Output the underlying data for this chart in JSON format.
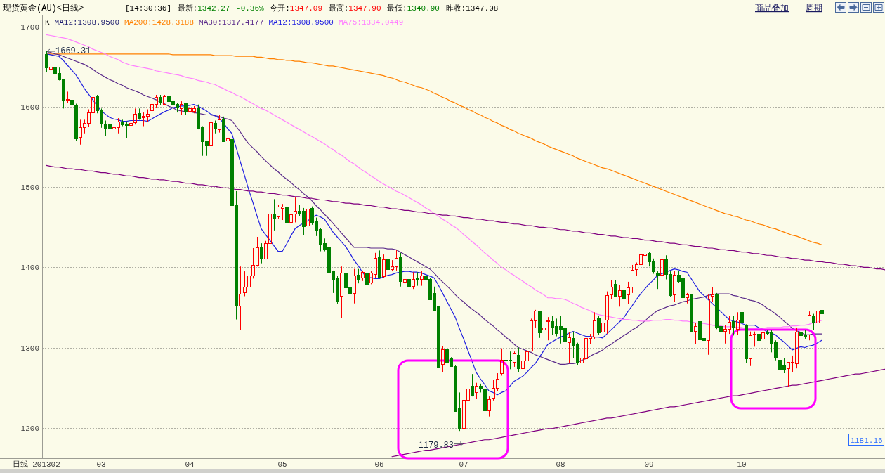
{
  "chart_data": {
    "type": "candlestick",
    "title": "现货黄金(AU)<日线>",
    "subtitle": "[14:30:36] 最新:1342.27 -0.36% 今开:1347.09 最高:1347.90 最低:1340.90 昨收:1347.08",
    "legend_title": "K",
    "categories": [
      "201302",
      null,
      null,
      null,
      null,
      null,
      null,
      null,
      null,
      null,
      null,
      null,
      null,
      "03",
      null,
      null,
      null,
      null,
      null,
      null,
      null,
      null,
      null,
      null,
      null,
      null,
      null,
      null,
      null,
      null,
      null,
      null,
      null,
      null,
      "04",
      null,
      null,
      null,
      null,
      null,
      null,
      null,
      null,
      null,
      null,
      null,
      null,
      null,
      null,
      null,
      null,
      null,
      null,
      null,
      null,
      null,
      "05",
      null,
      null,
      null,
      null,
      null,
      null,
      null,
      null,
      null,
      null,
      null,
      null,
      null,
      null,
      null,
      null,
      null,
      null,
      null,
      null,
      null,
      null,
      "06",
      null,
      null,
      null,
      null,
      null,
      null,
      null,
      null,
      null,
      null,
      null,
      null,
      null,
      null,
      null,
      null,
      null,
      null,
      null,
      "07",
      null,
      null,
      null,
      null,
      null,
      null,
      null,
      null,
      null,
      null,
      null,
      null,
      null,
      null,
      null,
      null,
      null,
      null,
      null,
      null,
      null,
      null,
      "08",
      null,
      null,
      null,
      null,
      null,
      null,
      null,
      null,
      null,
      null,
      null,
      null,
      null,
      null,
      null,
      null,
      null,
      null,
      null,
      null,
      "09",
      null,
      null,
      null,
      null,
      null,
      null,
      null,
      null,
      null,
      null,
      null,
      null,
      null,
      null,
      null,
      null,
      null,
      null,
      null,
      null,
      null,
      "10",
      null,
      null,
      null,
      null,
      null,
      null,
      null,
      null,
      null,
      null,
      null,
      null,
      null,
      null,
      null,
      null,
      null,
      null,
      null,
      null,
      null,
      null,
      null,
      null,
      null,
      null,
      null,
      null,
      null,
      null,
      null,
      null,
      null,
      null
    ],
    "ohlc": [
      [
        1666,
        1669.31,
        1643,
        1649
      ],
      [
        1647,
        1653,
        1638,
        1650
      ],
      [
        1650,
        1652,
        1638,
        1641
      ],
      [
        1642,
        1649,
        1633,
        1634
      ],
      [
        1634,
        1634,
        1598,
        1608
      ],
      [
        1609,
        1619,
        1605,
        1610
      ],
      [
        1609,
        1609,
        1601,
        1603
      ],
      [
        1603,
        1604,
        1558,
        1561
      ],
      [
        1562,
        1584,
        1553,
        1575
      ],
      [
        1575,
        1584,
        1567,
        1580
      ],
      [
        1580,
        1597,
        1575,
        1593
      ],
      [
        1593,
        1619,
        1583,
        1612
      ],
      [
        1613,
        1615,
        1592,
        1596
      ],
      [
        1597,
        1598,
        1574,
        1579
      ],
      [
        1579,
        1583,
        1564,
        1574
      ],
      [
        1579,
        1587,
        1564,
        1573
      ],
      [
        1573,
        1584,
        1570,
        1575
      ],
      [
        1575,
        1586,
        1567,
        1582
      ],
      [
        1582,
        1584,
        1576,
        1578
      ],
      [
        1579,
        1582,
        1561,
        1577
      ],
      [
        1577,
        1586,
        1574,
        1580
      ],
      [
        1581,
        1598,
        1578,
        1591
      ],
      [
        1592,
        1598,
        1584,
        1586
      ],
      [
        1587,
        1593,
        1576,
        1589
      ],
      [
        1589,
        1597,
        1581,
        1591
      ],
      [
        1596,
        1611,
        1590,
        1604
      ],
      [
        1604,
        1615,
        1599,
        1612
      ],
      [
        1612,
        1615,
        1602,
        1605
      ],
      [
        1604,
        1615,
        1603,
        1613
      ],
      [
        1614,
        1615,
        1602,
        1607
      ],
      [
        1608,
        1609,
        1588,
        1603
      ],
      [
        1604,
        1605,
        1593,
        1599
      ],
      [
        1598,
        1607,
        1590,
        1604
      ],
      [
        1605,
        1605,
        1590,
        1595
      ],
      [
        1595,
        1600,
        1593,
        1598
      ],
      [
        1595,
        1601,
        1592,
        1598
      ],
      [
        1598,
        1603,
        1572,
        1574
      ],
      [
        1575,
        1576,
        1539,
        1557
      ],
      [
        1558,
        1558,
        1539,
        1552
      ],
      [
        1552,
        1583,
        1549,
        1581
      ],
      [
        1580,
        1583,
        1567,
        1573
      ],
      [
        1572,
        1590,
        1568,
        1584
      ],
      [
        1584,
        1588,
        1557,
        1557
      ],
      [
        1558,
        1568,
        1552,
        1561
      ],
      [
        1560,
        1568,
        1476,
        1477
      ],
      [
        1477,
        1495,
        1335,
        1352
      ],
      [
        1352,
        1401,
        1322,
        1367
      ],
      [
        1369,
        1395,
        1364,
        1376
      ],
      [
        1376,
        1394,
        1340,
        1390
      ],
      [
        1390,
        1424,
        1386,
        1403
      ],
      [
        1403,
        1438,
        1401,
        1425
      ],
      [
        1426,
        1430,
        1405,
        1411
      ],
      [
        1411,
        1433,
        1410,
        1430
      ],
      [
        1430,
        1468,
        1428,
        1467
      ],
      [
        1467,
        1485,
        1446,
        1461
      ],
      [
        1463,
        1478,
        1460,
        1476
      ],
      [
        1474,
        1479,
        1459,
        1476
      ],
      [
        1476,
        1476,
        1440,
        1456
      ],
      [
        1456,
        1473,
        1448,
        1466
      ],
      [
        1467,
        1487,
        1456,
        1470
      ],
      [
        1470,
        1478,
        1464,
        1468
      ],
      [
        1470,
        1474,
        1440,
        1451
      ],
      [
        1452,
        1476,
        1449,
        1473
      ],
      [
        1474,
        1476,
        1453,
        1456
      ],
      [
        1457,
        1462,
        1439,
        1447
      ],
      [
        1448,
        1449,
        1420,
        1428
      ],
      [
        1430,
        1436,
        1420,
        1423
      ],
      [
        1425,
        1425,
        1389,
        1393
      ],
      [
        1395,
        1396,
        1368,
        1385
      ],
      [
        1387,
        1389,
        1354,
        1358
      ],
      [
        1364,
        1401,
        1337,
        1393
      ],
      [
        1393,
        1401,
        1359,
        1375
      ],
      [
        1376,
        1420,
        1354,
        1368
      ],
      [
        1368,
        1398,
        1355,
        1390
      ],
      [
        1391,
        1398,
        1380,
        1385
      ],
      [
        1387,
        1396,
        1383,
        1394
      ],
      [
        1393,
        1402,
        1373,
        1379
      ],
      [
        1381,
        1395,
        1379,
        1393
      ],
      [
        1392,
        1418,
        1387,
        1412
      ],
      [
        1413,
        1421,
        1386,
        1387
      ],
      [
        1389,
        1416,
        1387,
        1410
      ],
      [
        1411,
        1417,
        1395,
        1398
      ],
      [
        1398,
        1409,
        1395,
        1401
      ],
      [
        1401,
        1422,
        1396,
        1412
      ],
      [
        1413,
        1418,
        1376,
        1383
      ],
      [
        1382,
        1389,
        1377,
        1385
      ],
      [
        1385,
        1388,
        1365,
        1377
      ],
      [
        1377,
        1394,
        1373,
        1385
      ],
      [
        1387,
        1394,
        1377,
        1385
      ],
      [
        1385,
        1395,
        1377,
        1390
      ],
      [
        1390,
        1392,
        1383,
        1385
      ],
      [
        1385,
        1387,
        1360,
        1360
      ],
      [
        1368,
        1376,
        1347,
        1347
      ],
      [
        1351,
        1352,
        1275,
        1275
      ],
      [
        1279,
        1302,
        1269,
        1298
      ],
      [
        1298,
        1301,
        1276,
        1282
      ],
      [
        1287,
        1288,
        1276,
        1277
      ],
      [
        1277,
        1278,
        1220,
        1221
      ],
      [
        1225,
        1244,
        1196,
        1200
      ],
      [
        1200,
        1235,
        1179.83,
        1235
      ],
      [
        1235,
        1261,
        1234,
        1249
      ],
      [
        1252,
        1267,
        1239,
        1241
      ],
      [
        1244,
        1256,
        1236,
        1252
      ],
      [
        1252,
        1255,
        1244,
        1249
      ],
      [
        1249,
        1249,
        1208,
        1222
      ],
      [
        1222,
        1239,
        1214,
        1236
      ],
      [
        1237,
        1260,
        1234,
        1250
      ],
      [
        1250,
        1268,
        1246,
        1261
      ],
      [
        1268,
        1299,
        1265,
        1285
      ],
      [
        1285,
        1295,
        1274,
        1284
      ],
      [
        1285,
        1295,
        1273,
        1284
      ],
      [
        1282,
        1295,
        1276,
        1293
      ],
      [
        1291,
        1300,
        1269,
        1274
      ],
      [
        1274,
        1288,
        1273,
        1284
      ],
      [
        1284,
        1300,
        1282,
        1295
      ],
      [
        1296,
        1336,
        1295,
        1334
      ],
      [
        1334,
        1347,
        1325,
        1346
      ],
      [
        1345,
        1346,
        1312,
        1319
      ],
      [
        1322,
        1336,
        1313,
        1325
      ],
      [
        1333,
        1338,
        1309,
        1334
      ],
      [
        1333,
        1339,
        1316,
        1325
      ],
      [
        1327,
        1336,
        1314,
        1318
      ],
      [
        1327,
        1339,
        1305,
        1322
      ],
      [
        1325,
        1332,
        1305,
        1308
      ],
      [
        1307,
        1319,
        1281,
        1313
      ],
      [
        1312,
        1320,
        1287,
        1303
      ],
      [
        1304,
        1306,
        1278,
        1281
      ],
      [
        1281,
        1291,
        1273,
        1287
      ],
      [
        1286,
        1313,
        1281,
        1312
      ],
      [
        1312,
        1317,
        1304,
        1314
      ],
      [
        1314,
        1344,
        1311,
        1334
      ],
      [
        1336,
        1339,
        1316,
        1319
      ],
      [
        1320,
        1336,
        1315,
        1331
      ],
      [
        1335,
        1370,
        1317,
        1365
      ],
      [
        1366,
        1384,
        1360,
        1376
      ],
      [
        1379,
        1384,
        1363,
        1364
      ],
      [
        1364,
        1378,
        1351,
        1371
      ],
      [
        1371,
        1379,
        1357,
        1362
      ],
      [
        1366,
        1382,
        1354,
        1375
      ],
      [
        1376,
        1403,
        1368,
        1397
      ],
      [
        1398,
        1406,
        1389,
        1404
      ],
      [
        1404,
        1424,
        1395,
        1416
      ],
      [
        1415,
        1434,
        1412,
        1417
      ],
      [
        1418,
        1419,
        1401,
        1407
      ],
      [
        1407,
        1411,
        1392,
        1395
      ],
      [
        1393,
        1395,
        1373,
        1391
      ],
      [
        1391,
        1416,
        1383,
        1410
      ],
      [
        1411,
        1415,
        1385,
        1392
      ],
      [
        1392,
        1395,
        1363,
        1365
      ],
      [
        1366,
        1395,
        1357,
        1391
      ],
      [
        1391,
        1396,
        1381,
        1383
      ],
      [
        1387,
        1390,
        1358,
        1363
      ],
      [
        1363,
        1368,
        1355,
        1366
      ],
      [
        1366,
        1366,
        1319,
        1320
      ],
      [
        1321,
        1331,
        1304,
        1327
      ],
      [
        1333,
        1334,
        1302,
        1310
      ],
      [
        1312,
        1314,
        1307,
        1309
      ],
      [
        1309,
        1366,
        1291,
        1361
      ],
      [
        1364,
        1375,
        1357,
        1366
      ],
      [
        1366,
        1368,
        1323,
        1325
      ],
      [
        1327,
        1328,
        1313,
        1320
      ],
      [
        1321,
        1328,
        1305,
        1323
      ],
      [
        1323,
        1339,
        1317,
        1332
      ],
      [
        1333,
        1339,
        1315,
        1325
      ],
      [
        1323,
        1344,
        1316,
        1335
      ],
      [
        1344,
        1352,
        1324,
        1331
      ],
      [
        1328,
        1329,
        1281,
        1286
      ],
      [
        1286,
        1320,
        1277,
        1315
      ],
      [
        1316,
        1320,
        1301,
        1317
      ],
      [
        1317,
        1320,
        1305,
        1309
      ],
      [
        1311,
        1322,
        1309,
        1319
      ],
      [
        1320,
        1322,
        1316,
        1318
      ],
      [
        1319,
        1322,
        1294,
        1306
      ],
      [
        1307,
        1309,
        1284,
        1287
      ],
      [
        1285,
        1287,
        1261,
        1272
      ],
      [
        1278,
        1287,
        1268,
        1272
      ],
      [
        1274,
        1282,
        1251,
        1282
      ],
      [
        1281,
        1290,
        1269,
        1282
      ],
      [
        1280,
        1325,
        1274,
        1320
      ],
      [
        1319,
        1322,
        1312,
        1315
      ],
      [
        1316,
        1322,
        1311,
        1314
      ],
      [
        1316,
        1345,
        1309,
        1341
      ],
      [
        1339,
        1342,
        1322,
        1331
      ],
      [
        1331,
        1352,
        1330,
        1346
      ],
      [
        1347.09,
        1347.9,
        1340.9,
        1342.27
      ],
      null,
      null,
      null,
      null,
      null,
      null,
      null,
      null,
      null,
      null,
      null,
      null,
      null,
      null,
      null
    ],
    "series": [
      {
        "type": "line",
        "name": "MA12:1308.9500",
        "color": "#1c1c6e",
        "values": [
          null,
          null,
          null,
          null,
          null,
          null,
          null,
          null,
          null,
          null,
          null,
          null,
          null,
          null,
          null,
          null,
          null,
          null,
          null,
          null,
          null,
          null,
          null,
          null,
          null,
          null,
          null,
          null,
          null,
          null,
          null,
          null,
          null,
          null,
          null,
          null,
          null,
          null,
          null,
          null,
          null,
          null,
          null,
          null,
          null,
          null,
          null,
          null,
          null,
          null,
          null,
          null,
          null,
          null,
          null,
          null,
          null,
          null,
          null,
          null,
          null,
          null,
          null,
          null,
          null,
          null,
          null,
          null,
          null,
          null,
          null,
          null,
          null,
          null,
          null,
          null,
          null,
          null,
          null,
          null,
          null,
          null,
          null,
          null,
          null,
          null,
          null,
          null,
          null,
          null,
          null,
          null,
          null,
          null,
          null,
          null,
          null,
          null,
          null,
          null,
          null,
          null,
          null,
          null,
          null,
          null,
          null,
          null,
          null,
          null,
          null,
          null,
          null,
          null,
          null,
          null,
          null,
          null,
          null,
          null,
          null,
          null,
          null,
          null,
          null,
          null,
          null,
          null,
          null,
          null,
          null,
          null,
          null,
          null,
          null,
          null,
          null,
          null,
          null,
          null,
          null,
          null,
          null,
          null,
          null,
          null,
          null,
          null,
          null,
          null,
          null,
          null,
          null,
          null,
          null,
          null,
          null,
          null,
          null,
          null,
          null,
          null,
          null,
          null,
          null,
          null,
          null,
          null,
          null,
          null,
          null,
          null,
          null,
          null,
          null,
          null,
          null,
          null,
          null,
          null,
          null,
          null,
          null,
          null,
          null,
          null,
          null,
          null,
          null,
          null,
          null,
          null,
          null,
          null,
          null,
          null,
          null,
          null,
          null,
          null
        ]
      },
      {
        "type": "line",
        "name": "MA200:1428.3188",
        "color": "#ff8000",
        "values": [
          1666,
          1666,
          1666,
          1666,
          1666,
          1666,
          1666,
          1666,
          1666,
          1666,
          1666,
          1666,
          1666,
          1666,
          1666,
          1666,
          1666,
          1666,
          1666,
          1666,
          1666,
          1666,
          1666,
          1666,
          1666,
          1666,
          1666,
          1666,
          1666,
          1666,
          1665,
          1665,
          1665,
          1665,
          1665,
          1665,
          1665,
          1665,
          1665,
          1665,
          1664,
          1664,
          1664,
          1664,
          1664,
          1663,
          1663,
          1663,
          1663,
          1663,
          1662,
          1662,
          1661,
          1660,
          1660,
          1659,
          1659,
          1658,
          1658,
          1657,
          1657,
          1656,
          1655,
          1655,
          1654,
          1653,
          1652,
          1651,
          1651,
          1650,
          1649,
          1648,
          1647,
          1646,
          1645,
          1644,
          1643,
          1642,
          1641,
          1640,
          1639,
          1637,
          1636,
          1634,
          1632,
          1631,
          1629,
          1627,
          1625,
          1624,
          1622,
          1620,
          1617,
          1615,
          1612,
          1610,
          1607,
          1605,
          1602,
          1600,
          1597,
          1595,
          1592,
          1590,
          1587,
          1585,
          1582,
          1580,
          1577,
          1575,
          1572,
          1570,
          1567,
          1565,
          1563,
          1561,
          1558,
          1556,
          1554,
          1551,
          1549,
          1547,
          1545,
          1543,
          1541,
          1539,
          1536,
          1534,
          1532,
          1530,
          1528,
          1526,
          1524,
          1523,
          1521,
          1519,
          1517,
          1515,
          1513,
          1511,
          1509,
          1507,
          1505,
          1503,
          1501,
          1499,
          1497,
          1495,
          1493,
          1491,
          1489,
          1487,
          1485,
          1483,
          1481,
          1479,
          1477,
          1475,
          1473,
          1471,
          1469,
          1467,
          1466,
          1464,
          1463,
          1461,
          1459,
          1458,
          1456,
          1454,
          1453,
          1451,
          1449,
          1448,
          1446,
          1444,
          1442,
          1440,
          1439,
          1437,
          1435,
          1433,
          1431,
          1430,
          1428,
          null,
          null,
          null,
          null,
          null,
          null,
          null,
          null,
          null,
          null,
          null,
          null,
          null,
          null,
          null
        ]
      },
      {
        "type": "line",
        "name": "MA30:1317.4177",
        "color": "#5a2a8a",
        "values": [
          1669,
          1668,
          1666,
          1665,
          1663,
          1661,
          1659,
          1657,
          1655,
          1653,
          1650,
          1647,
          1643,
          1640,
          1637,
          1634,
          1632,
          1629,
          1627,
          1624,
          1622,
          1620,
          1618,
          1615,
          1613,
          1611,
          1609,
          1606,
          1604,
          1601,
          1599,
          1596,
          1595,
          1594,
          1594,
          1593,
          1592,
          1591,
          1590,
          1590,
          1589,
          1588,
          1586,
          1585,
          1583,
          1576,
          1569,
          1561,
          1554,
          1549,
          1544,
          1538,
          1533,
          1528,
          1523,
          1519,
          1514,
          1510,
          1506,
          1501,
          1497,
          1492,
          1488,
          1483,
          1477,
          1472,
          1466,
          1461,
          1455,
          1449,
          1443,
          1437,
          1431,
          1425,
          1425,
          1425,
          1425,
          1424,
          1424,
          1424,
          1424,
          1423,
          1423,
          1422,
          1419,
          1416,
          1413,
          1410,
          1407,
          1404,
          1401,
          1398,
          1393,
          1387,
          1382,
          1377,
          1372,
          1366,
          1361,
          1357,
          1352,
          1348,
          1344,
          1340,
          1335,
          1331,
          1327,
          1322,
          1318,
          1313,
          1309,
          1304,
          1300,
          1298,
          1296,
          1294,
          1291,
          1289,
          1287,
          1285,
          1283,
          1281,
          1279,
          1279,
          1280,
          1280,
          1281,
          1284,
          1286,
          1289,
          1292,
          1294,
          1297,
          1301,
          1304,
          1308,
          1311,
          1315,
          1318,
          1322,
          1325,
          1329,
          1333,
          1338,
          1342,
          1346,
          1348,
          1350,
          1352,
          1353,
          1355,
          1357,
          1358,
          1360,
          1361,
          1362,
          1363,
          1365,
          1366,
          1367,
          1367,
          1367,
          1367,
          1365,
          1364,
          1362,
          1361,
          1359,
          1358,
          1356,
          1353,
          1349,
          1346,
          1342,
          1338,
          1333,
          1329,
          1324,
          1321,
          1319,
          1316,
          1316,
          1317,
          1317,
          1317,
          null,
          null,
          null,
          null,
          null,
          null,
          null,
          null,
          null,
          null,
          null,
          null,
          null,
          null,
          null
        ]
      },
      {
        "type": "line",
        "name": "MA12:1308.9500",
        "color": "#2020e0",
        "values": [
          1666,
          1665,
          1664,
          1663,
          1658,
          1652,
          1646,
          1640,
          1632,
          1623,
          1616,
          1609,
          1602,
          1595,
          1591,
          1587,
          1585,
          1584,
          1582,
          1582,
          1583,
          1583,
          1583,
          1583,
          1582,
          1585,
          1588,
          1591,
          1594,
          1596,
          1599,
          1600,
          1601,
          1601,
          1602,
          1603,
          1601,
          1598,
          1595,
          1591,
          1589,
          1586,
          1580,
          1573,
          1567,
          1550,
          1532,
          1515,
          1497,
          1481,
          1464,
          1448,
          1441,
          1434,
          1427,
          1420,
          1420,
          1429,
          1439,
          1448,
          1452,
          1455,
          1458,
          1462,
          1465,
          1463,
          1460,
          1452,
          1444,
          1438,
          1432,
          1426,
          1418,
          1409,
          1402,
          1394,
          1387,
          1387,
          1386,
          1386,
          1388,
          1390,
          1391,
          1393,
          1394,
          1395,
          1395,
          1394,
          1394,
          1393,
          1391,
          1389,
          1387,
          1378,
          1368,
          1358,
          1348,
          1338,
          1324,
          1311,
          1297,
          1283,
          1269,
          1261,
          1254,
          1246,
          1244,
          1241,
          1244,
          1246,
          1252,
          1258,
          1261,
          1264,
          1269,
          1275,
          1280,
          1288,
          1296,
          1304,
          1307,
          1310,
          1313,
          1315,
          1318,
          1320,
          1318,
          1316,
          1314,
          1314,
          1313,
          1313,
          1312,
          1317,
          1322,
          1327,
          1332,
          1337,
          1345,
          1352,
          1360,
          1367,
          1373,
          1379,
          1384,
          1390,
          1392,
          1394,
          1396,
          1398,
          1397,
          1395,
          1394,
          1386,
          1378,
          1370,
          1365,
          1360,
          1355,
          1350,
          1345,
          1340,
          1335,
          1333,
          1332,
          1330,
          1328,
          1328,
          1328,
          1325,
          1323,
          1320,
          1318,
          1316,
          1311,
          1307,
          1302,
          1297,
          1299,
          1301,
          1300,
          1302,
          1303,
          1306,
          1309,
          null,
          null,
          null,
          null,
          null,
          null,
          null,
          null,
          null,
          null,
          null,
          null,
          null,
          null,
          null
        ]
      },
      {
        "type": "line",
        "name": "MA75:1334.0449",
        "color": "#ff80ff",
        "values": [
          1690,
          1689,
          1688,
          1687,
          1686,
          1685,
          1683,
          1681,
          1679,
          1677,
          1675,
          1672,
          1670,
          1668,
          1666,
          1663,
          1661,
          1659,
          1656,
          1654,
          1652,
          1651,
          1650,
          1649,
          1648,
          1647,
          1645,
          1644,
          1643,
          1642,
          1641,
          1640,
          1639,
          1637,
          1636,
          1635,
          1633,
          1632,
          1631,
          1629,
          1628,
          1625,
          1623,
          1620,
          1618,
          1615,
          1613,
          1610,
          1607,
          1604,
          1601,
          1598,
          1596,
          1593,
          1590,
          1587,
          1584,
          1581,
          1578,
          1575,
          1572,
          1569,
          1566,
          1563,
          1560,
          1557,
          1554,
          1550,
          1547,
          1543,
          1540,
          1536,
          1532,
          1529,
          1525,
          1521,
          1518,
          1514,
          1511,
          1507,
          1504,
          1501,
          1498,
          1495,
          1493,
          1490,
          1487,
          1484,
          1481,
          1478,
          1474,
          1471,
          1467,
          1464,
          1460,
          1457,
          1453,
          1450,
          1446,
          1441,
          1437,
          1432,
          1428,
          1423,
          1418,
          1414,
          1409,
          1405,
          1400,
          1397,
          1393,
          1390,
          1386,
          1383,
          1379,
          1376,
          1372,
          1369,
          1366,
          1362,
          1362,
          1361,
          1361,
          1360,
          1358,
          1355,
          1353,
          1350,
          1348,
          1346,
          1343,
          1341,
          1340,
          1339,
          1338,
          1337,
          1336,
          1335,
          1335,
          1334,
          1334,
          1333,
          1333,
          1333,
          1334,
          1334,
          1334,
          1335,
          1335,
          1334,
          1334,
          1333,
          1333,
          1332,
          1331,
          1330,
          1330,
          1329,
          1328,
          1327,
          1327,
          1326,
          1326,
          1326,
          1325,
          1325,
          1324,
          1324,
          1324,
          1324,
          1324,
          1325,
          1325,
          1325,
          1325,
          1326,
          1326,
          1327,
          1327,
          1328,
          1328,
          1329,
          1331,
          1332,
          1334,
          null,
          null,
          null,
          null,
          null,
          null,
          null,
          null,
          null,
          null,
          null,
          null,
          null,
          null,
          null
        ]
      },
      {
        "type": "line",
        "color": "#800080",
        "values": [
          1527,
          1526,
          1525,
          1525,
          1524,
          1523,
          1523,
          1522,
          1522,
          1521,
          1520,
          1520,
          1519,
          1518,
          1518,
          1517,
          1516,
          1516,
          1515,
          1514,
          1514,
          1513,
          1512,
          1512,
          1511,
          1510,
          1510,
          1509,
          1509,
          1508,
          1507,
          1507,
          1506,
          1505,
          1505,
          1504,
          1503,
          1503,
          1502,
          1501,
          1501,
          1500,
          1499,
          1499,
          1498,
          1497,
          1497,
          1496,
          1495,
          1495,
          1494,
          1494,
          1493,
          1492,
          1492,
          1491,
          1490,
          1490,
          1489,
          1488,
          1488,
          1487,
          1486,
          1486,
          1485,
          1484,
          1484,
          1483,
          1482,
          1482,
          1481,
          1480,
          1480,
          1479,
          1479,
          1478,
          1477,
          1477,
          1476,
          1475,
          1475,
          1474,
          1473,
          1473,
          1472,
          1471,
          1471,
          1470,
          1469,
          1469,
          1468,
          1467,
          1467,
          1466,
          1465,
          1465,
          1464,
          1464,
          1463,
          1462,
          1462,
          1461,
          1460,
          1460,
          1459,
          1458,
          1458,
          1457,
          1456,
          1456,
          1455,
          1454,
          1454,
          1453,
          1452,
          1452,
          1451,
          1450,
          1450,
          1449,
          1449,
          1448,
          1447,
          1447,
          1446,
          1445,
          1445,
          1444,
          1443,
          1443,
          1442,
          1441,
          1441,
          1440,
          1439,
          1439,
          1438,
          1437,
          1437,
          1436,
          1436,
          1435,
          1434,
          1434,
          1433,
          1432,
          1432,
          1431,
          1430,
          1430,
          1429,
          1428,
          1428,
          1427,
          1426,
          1426,
          1425,
          1424,
          1424,
          1423,
          1422,
          1422,
          1421,
          1421,
          1420,
          1419,
          1419,
          1418,
          1417,
          1417,
          1416,
          1415,
          1415,
          1414,
          1413,
          1413,
          1412,
          1411,
          1411,
          1410,
          1409,
          1409,
          1408,
          1407,
          1407,
          1406,
          1406,
          1405,
          1404,
          1404,
          1403,
          1402,
          1402,
          1401,
          1400,
          1400,
          1399,
          1398,
          1398,
          1397
        ]
      },
      {
        "type": "line",
        "color": "#800080",
        "values": [
          null,
          null,
          null,
          null,
          null,
          null,
          null,
          null,
          null,
          null,
          null,
          null,
          null,
          null,
          null,
          null,
          null,
          null,
          null,
          null,
          null,
          null,
          null,
          null,
          null,
          null,
          null,
          null,
          null,
          null,
          null,
          null,
          null,
          null,
          null,
          null,
          null,
          null,
          null,
          null,
          null,
          null,
          null,
          null,
          null,
          null,
          null,
          null,
          null,
          null,
          null,
          null,
          null,
          null,
          null,
          null,
          null,
          null,
          null,
          null,
          null,
          null,
          null,
          null,
          null,
          null,
          null,
          null,
          null,
          null,
          null,
          null,
          null,
          null,
          null,
          null,
          null,
          null,
          null,
          null,
          null,
          null,
          1164,
          1165,
          1166,
          1167,
          1168,
          1169,
          1170,
          1171,
          1172,
          1172,
          1173,
          1174,
          1175,
          1176,
          1177,
          1178,
          1179,
          1180,
          1181,
          1182,
          1183,
          1184,
          1185,
          1185,
          1186,
          1187,
          1188,
          1189,
          1190,
          1191,
          1192,
          1193,
          1194,
          1195,
          1196,
          1197,
          1198,
          1199,
          1199,
          1200,
          1201,
          1202,
          1203,
          1204,
          1205,
          1206,
          1207,
          1208,
          1209,
          1210,
          1211,
          1212,
          1212,
          1213,
          1214,
          1215,
          1216,
          1217,
          1218,
          1219,
          1220,
          1221,
          1222,
          1223,
          1224,
          1225,
          1226,
          1226,
          1227,
          1228,
          1229,
          1230,
          1231,
          1232,
          1233,
          1234,
          1235,
          1236,
          1237,
          1238,
          1239,
          1240,
          1240,
          1241,
          1242,
          1243,
          1244,
          1245,
          1246,
          1247,
          1248,
          1249,
          1250,
          1251,
          1252,
          1253,
          1253,
          1254,
          1255,
          1256,
          1257,
          1258,
          1259,
          1260,
          1261,
          1262,
          1263,
          1264,
          1265,
          1266,
          1267,
          1267,
          1268,
          1269,
          1270,
          1271,
          1272,
          1273
        ]
      }
    ],
    "ylim": [
      1162,
      1714
    ],
    "yticks": [
      1200,
      1300,
      1400,
      1500,
      1600,
      1700
    ],
    "grid": "y",
    "legend": "top left",
    "annotations": [
      "1669.31",
      "1179.83",
      "1181.16",
      "日线",
      "商品叠加",
      "周期"
    ]
  }
}
